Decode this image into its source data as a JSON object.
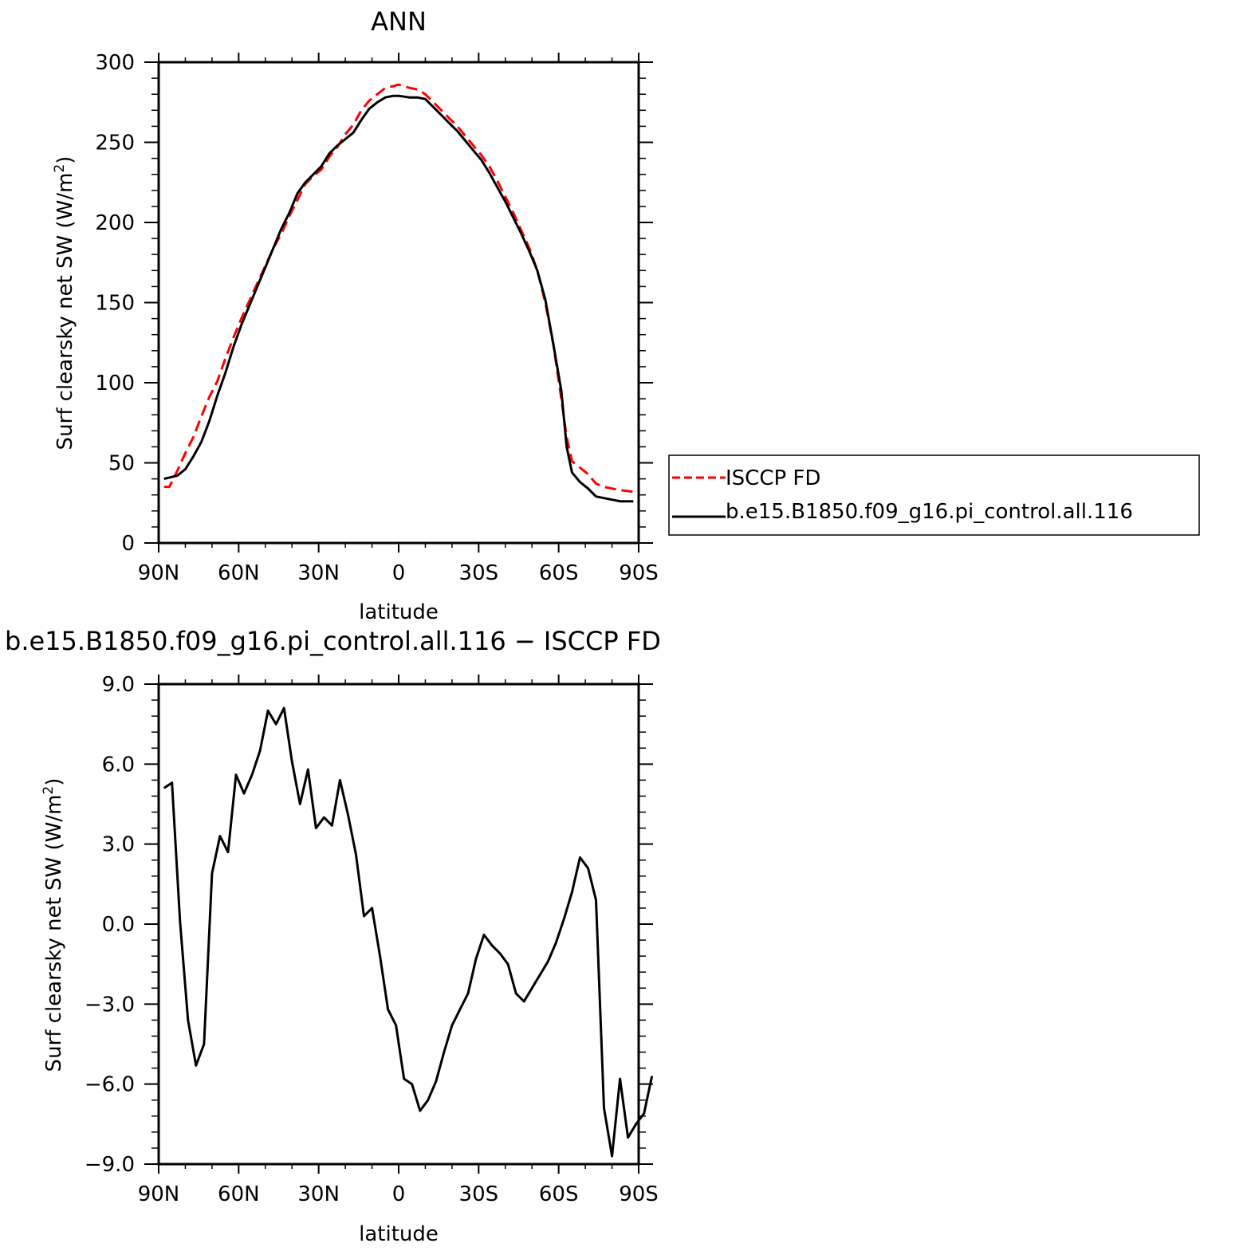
{
  "chart_data": [
    {
      "type": "line",
      "title": "ANN",
      "xlabel": "latitude",
      "ylabel": "Surf clearsky net SW (W/m²)",
      "xlim": [
        90,
        -90
      ],
      "ylim": [
        0,
        300
      ],
      "x_ticks": [
        {
          "value": 90,
          "label": "90N"
        },
        {
          "value": 60,
          "label": "60N"
        },
        {
          "value": 30,
          "label": "30N"
        },
        {
          "value": 0,
          "label": "0"
        },
        {
          "value": -30,
          "label": "30S"
        },
        {
          "value": -60,
          "label": "60S"
        },
        {
          "value": -90,
          "label": "90S"
        }
      ],
      "y_ticks": [
        {
          "value": 0,
          "label": "0"
        },
        {
          "value": 50,
          "label": "50"
        },
        {
          "value": 100,
          "label": "100"
        },
        {
          "value": 150,
          "label": "150"
        },
        {
          "value": 200,
          "label": "200"
        },
        {
          "value": 250,
          "label": "250"
        },
        {
          "value": 300,
          "label": "300"
        }
      ],
      "legend_position": "right",
      "series": [
        {
          "name": "ISCCP FD",
          "color": "#ff0000",
          "dash": "dashed",
          "x": [
            88,
            86,
            83,
            80,
            77,
            74,
            71,
            68,
            65,
            62,
            59,
            56,
            53,
            50,
            47,
            44,
            41,
            38,
            35,
            32,
            29,
            26,
            23,
            20,
            17,
            14,
            11,
            8,
            5,
            2,
            -1,
            -4,
            -7,
            -10,
            -13,
            -16,
            -19,
            -22,
            -25,
            -28,
            -31,
            -34,
            -37,
            -40,
            -43,
            -46,
            -49,
            -52,
            -55,
            -58,
            -61,
            -64,
            -67,
            -70,
            -73,
            -76,
            -79,
            -82,
            -85,
            -88
          ],
          "y": [
            35,
            36,
            45,
            56,
            66,
            79,
            91,
            101,
            115,
            128,
            140,
            151,
            162,
            173,
            184,
            193,
            204,
            214,
            224,
            229,
            233,
            241,
            247,
            255,
            261,
            270,
            276,
            280,
            284,
            285,
            286,
            284,
            283,
            280,
            275,
            270,
            265,
            260,
            254,
            248,
            240,
            233,
            224,
            214,
            204,
            193,
            180,
            165,
            144,
            122,
            90,
            66,
            50,
            45,
            42,
            36,
            34,
            33,
            33,
            32
          ],
          "points": [
            [
              88,
              35
            ],
            [
              86,
              35
            ],
            [
              83,
              45
            ],
            [
              80,
              56
            ],
            [
              77,
              66
            ],
            [
              74,
              79
            ],
            [
              71,
              91
            ],
            [
              68,
              101
            ],
            [
              65,
              115
            ],
            [
              62,
              128
            ],
            [
              59,
              140
            ],
            [
              56,
              151
            ],
            [
              53,
              162
            ],
            [
              50,
              173
            ],
            [
              47,
              184
            ],
            [
              44,
              193
            ],
            [
              41,
              204
            ],
            [
              38,
              214
            ],
            [
              35,
              224
            ],
            [
              32,
              229
            ],
            [
              29,
              233
            ],
            [
              26,
              241
            ],
            [
              23,
              247
            ],
            [
              20,
              255
            ],
            [
              17,
              261
            ],
            [
              14,
              270
            ],
            [
              11,
              276
            ],
            [
              8,
              280
            ],
            [
              5,
              284
            ],
            [
              2,
              285
            ],
            [
              0,
              286
            ],
            [
              -4,
              284
            ],
            [
              -7,
              283
            ],
            [
              -10,
              280
            ],
            [
              -13,
              275
            ],
            [
              -16,
              270
            ],
            [
              -19,
              265
            ],
            [
              -22,
              260
            ],
            [
              -25,
              254
            ],
            [
              -28,
              248
            ],
            [
              -31,
              242
            ],
            [
              -34,
              235
            ],
            [
              -37,
              226
            ],
            [
              -40,
              216
            ],
            [
              -43,
              206
            ],
            [
              -46,
              195
            ],
            [
              -49,
              184
            ],
            [
              -52,
              170
            ],
            [
              -55,
              150
            ],
            [
              -58,
              124
            ],
            [
              -61,
              90
            ],
            [
              -63,
              66
            ],
            [
              -65,
              51
            ],
            [
              -68,
              47
            ],
            [
              -71,
              43
            ],
            [
              -74,
              37
            ],
            [
              -77,
              35
            ],
            [
              -80,
              34
            ],
            [
              -83,
              33
            ],
            [
              -88,
              32
            ]
          ]
        },
        {
          "name": "b.e15.B1850.f09_g16.pi_control.all.116",
          "color": "#000000",
          "dash": "solid",
          "points": [
            [
              88,
              40
            ],
            [
              83,
              42
            ],
            [
              80,
              46
            ],
            [
              77,
              54
            ],
            [
              74,
              63
            ],
            [
              71,
              76
            ],
            [
              68,
              92
            ],
            [
              65,
              106
            ],
            [
              62,
              122
            ],
            [
              59,
              136
            ],
            [
              56,
              148
            ],
            [
              53,
              160
            ],
            [
              50,
              172
            ],
            [
              47,
              184
            ],
            [
              44,
              196
            ],
            [
              41,
              206
            ],
            [
              38,
              218
            ],
            [
              35,
              225
            ],
            [
              32,
              230
            ],
            [
              29,
              235
            ],
            [
              26,
              243
            ],
            [
              23,
              248
            ],
            [
              20,
              252
            ],
            [
              17,
              256
            ],
            [
              14,
              264
            ],
            [
              11,
              271
            ],
            [
              8,
              275
            ],
            [
              5,
              278
            ],
            [
              2,
              279
            ],
            [
              0,
              279
            ],
            [
              -4,
              278
            ],
            [
              -7,
              278
            ],
            [
              -10,
              277
            ],
            [
              -13,
              272
            ],
            [
              -16,
              267
            ],
            [
              -19,
              262
            ],
            [
              -22,
              257
            ],
            [
              -25,
              251
            ],
            [
              -28,
              245
            ],
            [
              -31,
              239
            ],
            [
              -34,
              231
            ],
            [
              -37,
              222
            ],
            [
              -40,
              213
            ],
            [
              -43,
              203
            ],
            [
              -46,
              193
            ],
            [
              -49,
              182
            ],
            [
              -52,
              170
            ],
            [
              -55,
              152
            ],
            [
              -58,
              124
            ],
            [
              -61,
              95
            ],
            [
              -63,
              60
            ],
            [
              -65,
              44
            ],
            [
              -68,
              38
            ],
            [
              -71,
              34
            ],
            [
              -74,
              29
            ],
            [
              -77,
              28
            ],
            [
              -80,
              27
            ],
            [
              -83,
              26
            ],
            [
              -88,
              26
            ]
          ]
        }
      ]
    },
    {
      "type": "line",
      "title": "b.e15.B1850.f09_g16.pi_control.all.116 − ISCCP FD",
      "xlabel": "latitude",
      "ylabel": "Surf clearsky net SW (W/m²)",
      "xlim": [
        90,
        -90
      ],
      "ylim": [
        -9,
        9
      ],
      "x_ticks": [
        {
          "value": 90,
          "label": "90N"
        },
        {
          "value": 60,
          "label": "60N"
        },
        {
          "value": 30,
          "label": "30N"
        },
        {
          "value": 0,
          "label": "0"
        },
        {
          "value": -30,
          "label": "30S"
        },
        {
          "value": -60,
          "label": "60S"
        },
        {
          "value": -90,
          "label": "90S"
        }
      ],
      "y_ticks": [
        {
          "value": -9,
          "label": "−9.0"
        },
        {
          "value": -6,
          "label": "−6.0"
        },
        {
          "value": -3,
          "label": "−3.0"
        },
        {
          "value": 0,
          "label": "0.0"
        },
        {
          "value": 3,
          "label": "3.0"
        },
        {
          "value": 6,
          "label": "6.0"
        },
        {
          "value": 9,
          "label": "9.0"
        }
      ],
      "series": [
        {
          "color": "#000000",
          "dash": "solid",
          "points": [
            [
              88,
              5.1
            ],
            [
              85,
              5.3
            ],
            [
              82,
              0.1
            ],
            [
              79,
              -3.6
            ],
            [
              76,
              -5.3
            ],
            [
              73,
              -4.5
            ],
            [
              70,
              1.9
            ],
            [
              67,
              3.3
            ],
            [
              64,
              2.7
            ],
            [
              61,
              5.6
            ],
            [
              58,
              4.9
            ],
            [
              55,
              5.6
            ],
            [
              52,
              6.5
            ],
            [
              49,
              8.0
            ],
            [
              46,
              7.5
            ],
            [
              43,
              8.1
            ],
            [
              40,
              6.1
            ],
            [
              37,
              4.5
            ],
            [
              34,
              5.8
            ],
            [
              31,
              3.6
            ],
            [
              28,
              4.0
            ],
            [
              25,
              3.7
            ],
            [
              22,
              5.4
            ],
            [
              19,
              4.1
            ],
            [
              16,
              2.6
            ],
            [
              13,
              0.3
            ],
            [
              10,
              0.6
            ],
            [
              7,
              -1.2
            ],
            [
              4,
              -3.2
            ],
            [
              1,
              -3.8
            ],
            [
              -2,
              -5.8
            ],
            [
              -5,
              -6.0
            ],
            [
              -8,
              -7.0
            ],
            [
              -11,
              -6.6
            ],
            [
              -14,
              -5.9
            ],
            [
              -17,
              -4.8
            ],
            [
              -20,
              -3.8
            ],
            [
              -23,
              -3.2
            ],
            [
              -26,
              -2.6
            ],
            [
              -29,
              -1.3
            ],
            [
              -32,
              -0.4
            ],
            [
              -35,
              -0.8
            ],
            [
              -38,
              -1.1
            ],
            [
              -41,
              -1.5
            ],
            [
              -44,
              -2.6
            ],
            [
              -47,
              -2.9
            ],
            [
              -50,
              -2.4
            ],
            [
              -53,
              -1.9
            ],
            [
              -56,
              -1.4
            ],
            [
              -59,
              -0.7
            ],
            [
              -62,
              0.2
            ],
            [
              -65,
              1.2
            ],
            [
              -68,
              2.5
            ],
            [
              -71,
              2.1
            ],
            [
              -74,
              0.9
            ],
            [
              -77,
              -6.9
            ],
            [
              -80,
              -8.7
            ],
            [
              -83,
              -5.8
            ],
            [
              -86,
              -8.0
            ],
            [
              -89,
              -7.5
            ],
            [
              -92,
              -7.1
            ],
            [
              -95,
              -5.7
            ]
          ]
        }
      ]
    }
  ]
}
